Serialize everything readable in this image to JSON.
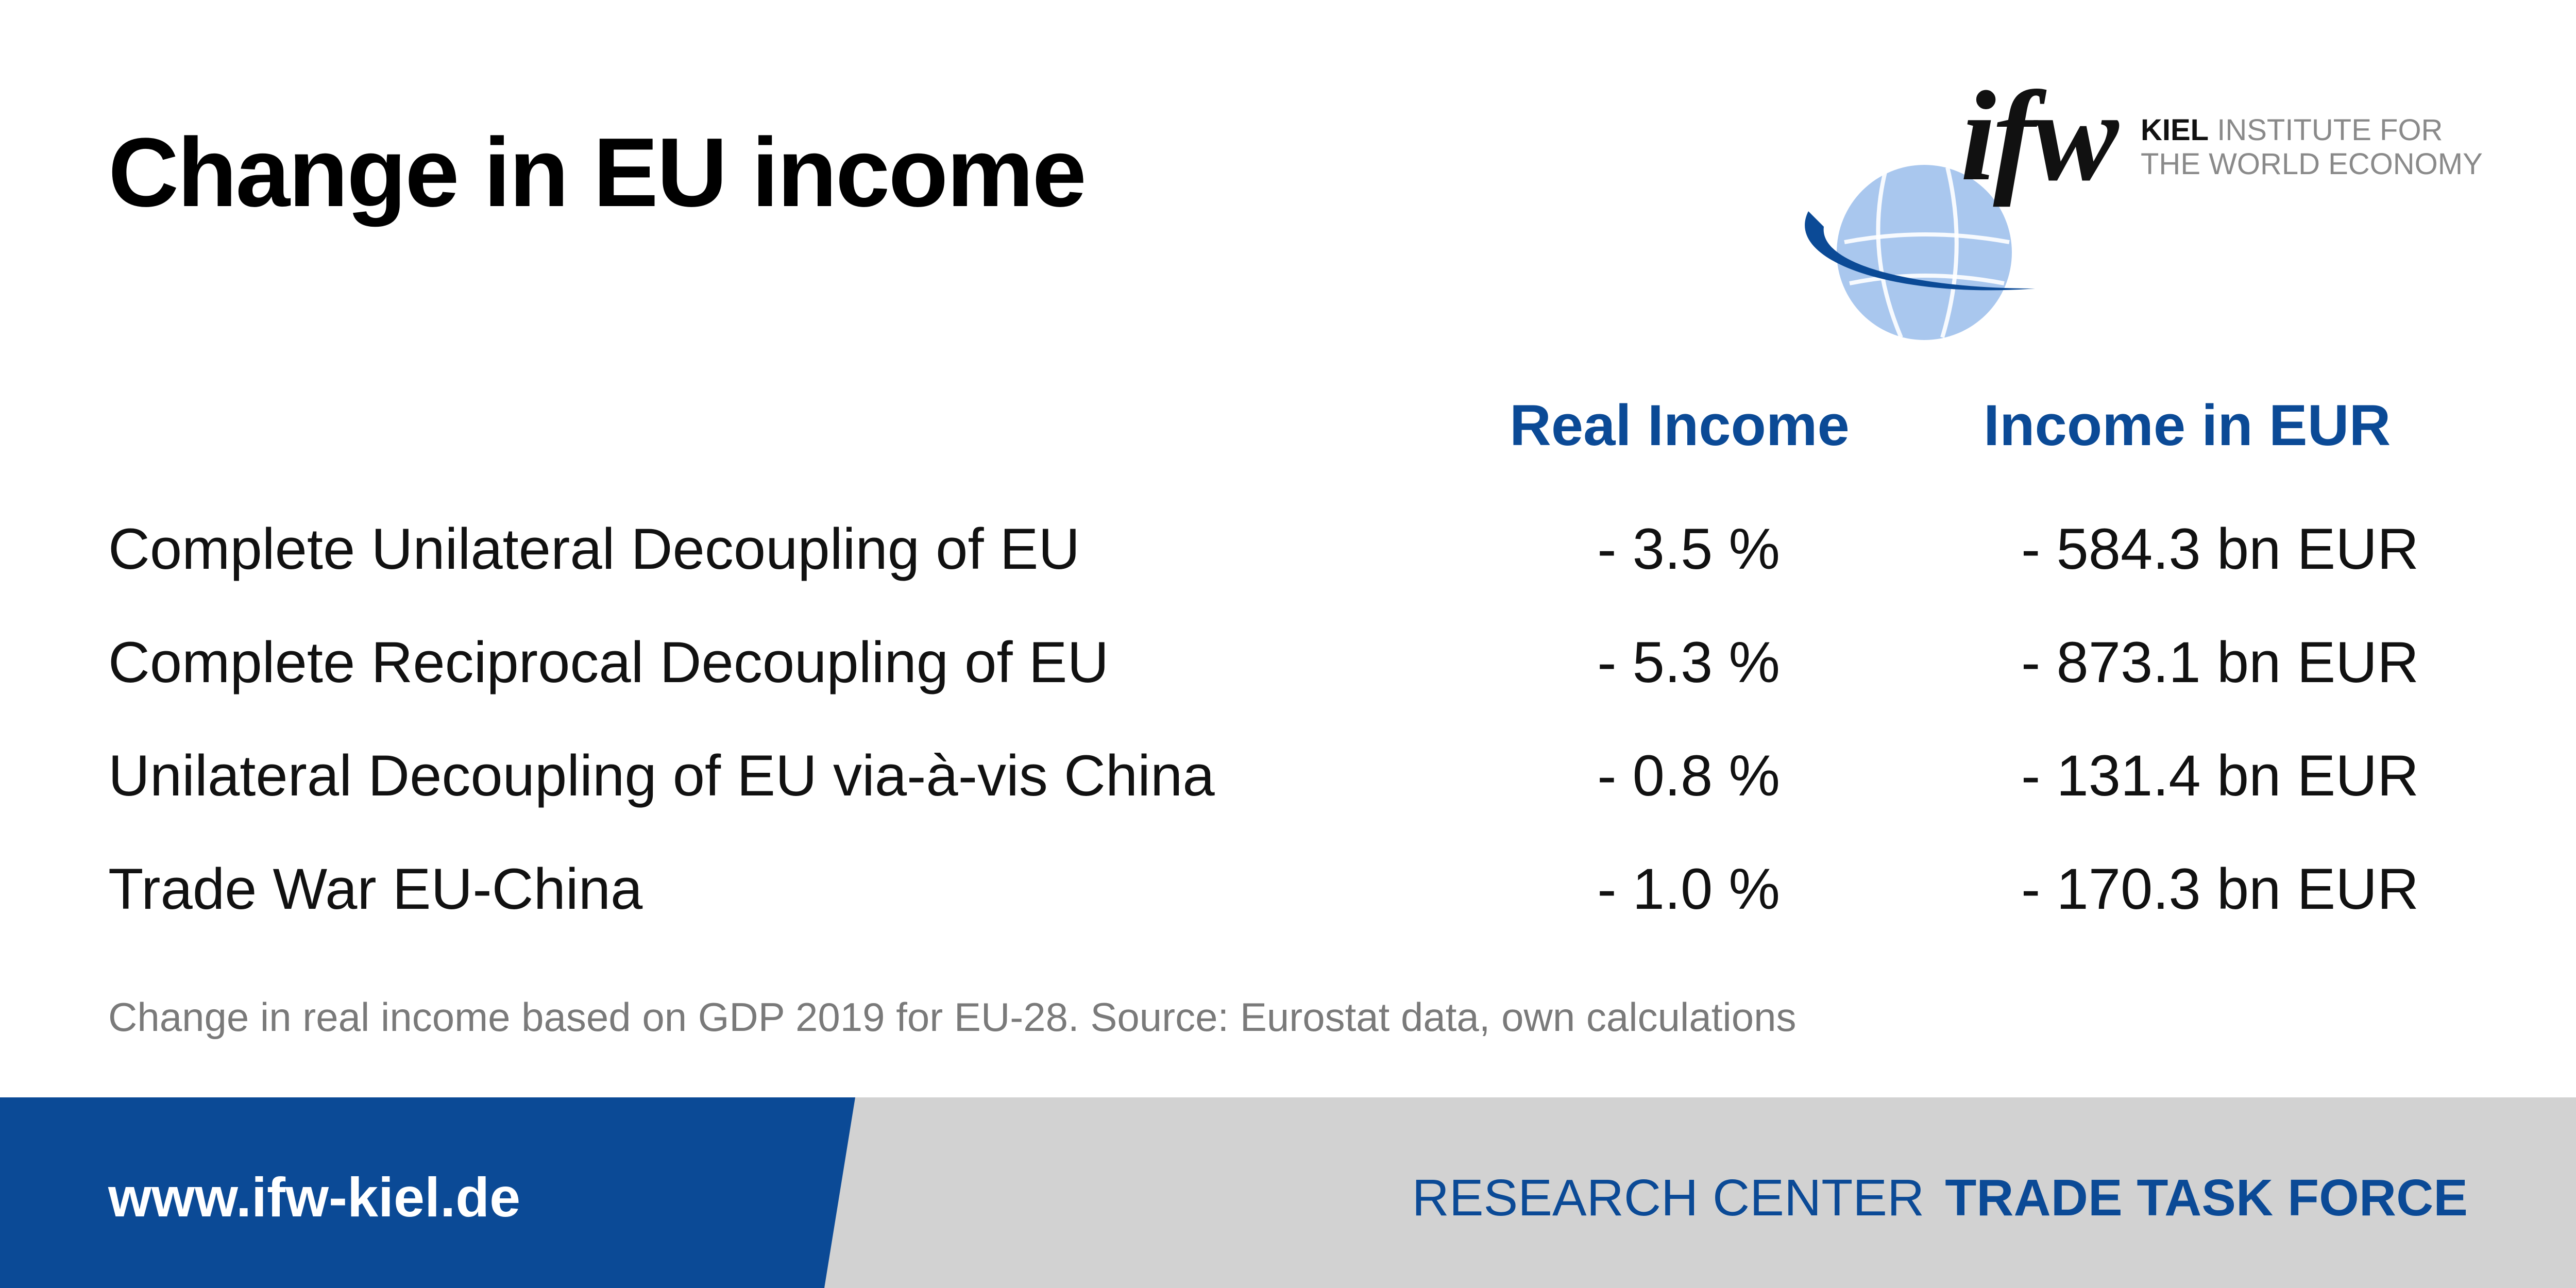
{
  "title": "Change in EU income",
  "logo": {
    "mark": "ifw",
    "line1_bold": "KIEL",
    "line1_rest": " INSTITUTE FOR",
    "line2": "THE WORLD ECONOMY",
    "colors": {
      "globe_light": "#a9c7ee",
      "swoosh": "#0b4a96"
    }
  },
  "table": {
    "headers": {
      "real_income": "Real Income",
      "income_eur": "Income in EUR"
    },
    "rows": [
      {
        "label": "Complete Unilateral Decoupling of EU",
        "real_income": "- 3.5 %",
        "income_eur": "- 584.3 bn EUR"
      },
      {
        "label": "Complete Reciprocal Decoupling of EU",
        "real_income": "- 5.3 %",
        "income_eur": "- 873.1 bn EUR"
      },
      {
        "label": "Unilateral Decoupling of EU via-à-vis China",
        "real_income": "- 0.8 %",
        "income_eur": "- 131.4 bn EUR"
      },
      {
        "label": "Trade War EU-China",
        "real_income": "- 1.0 %",
        "income_eur": "- 170.3 bn EUR"
      }
    ]
  },
  "footnote": "Change in real income based on GDP 2019 for EU-28. Source: Eurostat data, own calculations",
  "footer": {
    "url": "www.ifw-kiel.de",
    "research_center": "RESEARCH CENTER",
    "task_force": "TRADE TASK FORCE"
  },
  "colors": {
    "accent_blue": "#0b4a96",
    "footer_gray": "#d2d2d2",
    "footnote_gray": "#7a7a7a"
  }
}
